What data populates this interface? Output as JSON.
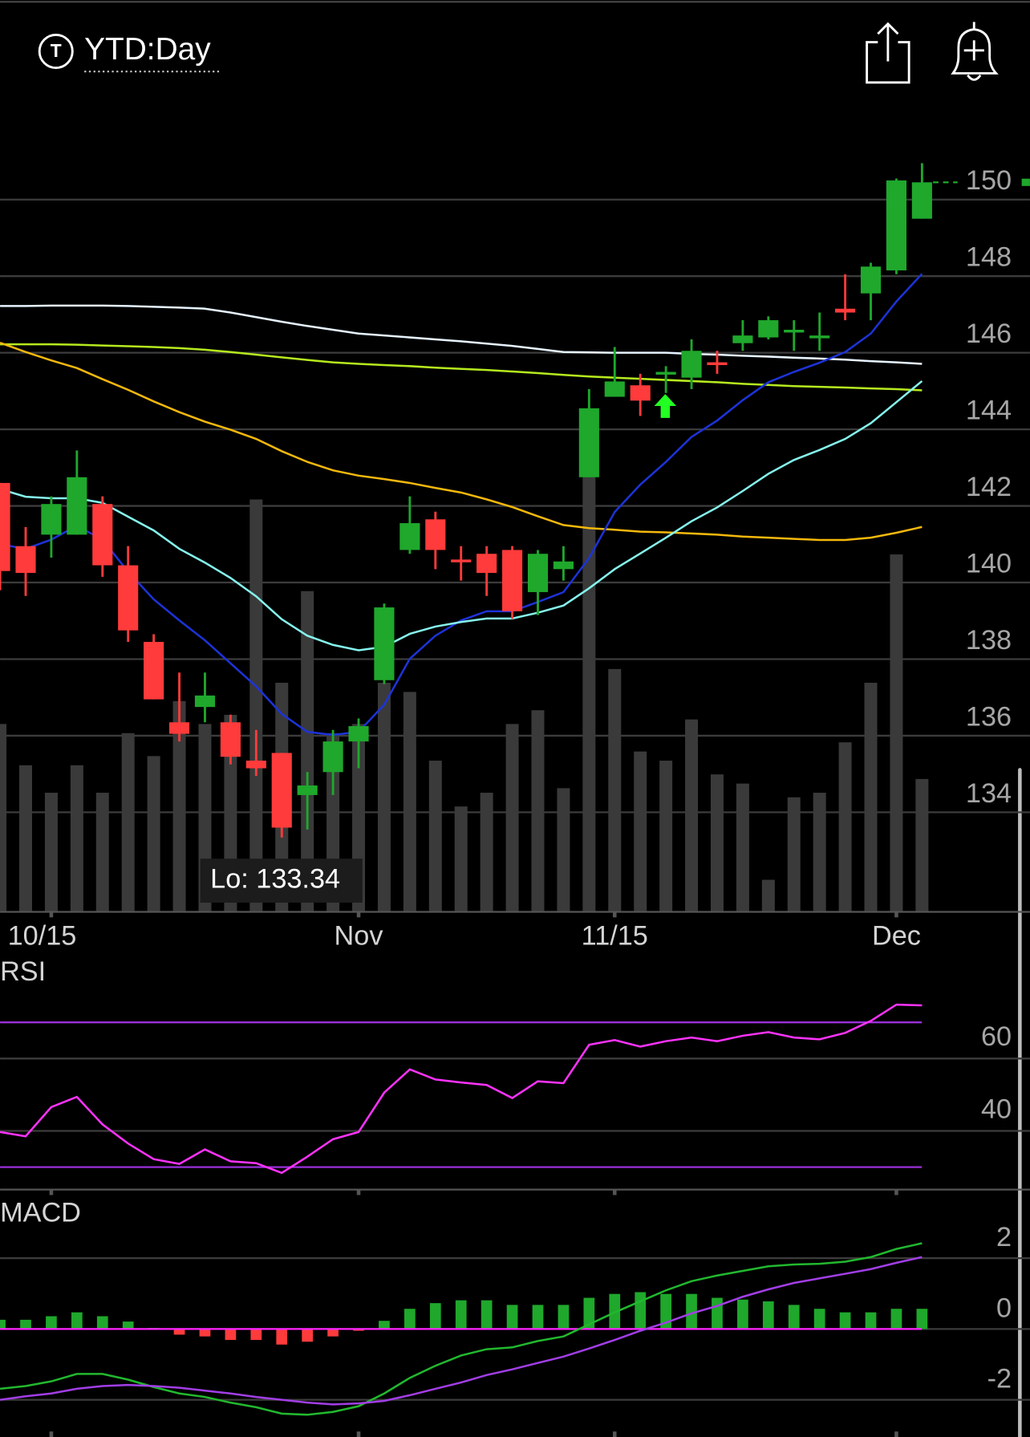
{
  "header": {
    "icon_letter": "T",
    "timeframe": "YTD:Day"
  },
  "chart_data": [
    {
      "type": "candlestick",
      "categories": [
        null,
        null,
        "10/15",
        null,
        null,
        null,
        null,
        null,
        null,
        null,
        null,
        null,
        null,
        null,
        "Nov",
        null,
        null,
        null,
        null,
        null,
        null,
        null,
        null,
        null,
        "11/15",
        null,
        null,
        null,
        null,
        null,
        null,
        null,
        null,
        null,
        null,
        "Dec",
        null
      ],
      "open": [
        142.6,
        140.95,
        141.25,
        141.25,
        142.05,
        140.45,
        138.45,
        136.35,
        136.75,
        136.35,
        135.35,
        135.55,
        134.45,
        135.05,
        135.85,
        137.45,
        140.85,
        141.65,
        140.6,
        140.75,
        140.85,
        139.75,
        140.35,
        142.75,
        144.85,
        145.15,
        145.45,
        145.35,
        145.75,
        146.25,
        146.4,
        146.55,
        146.4,
        147.15,
        147.55,
        148.15,
        149.5
      ],
      "high": [
        142.6,
        141.45,
        142.25,
        143.45,
        142.25,
        140.95,
        138.65,
        137.65,
        137.65,
        136.55,
        136.15,
        135.55,
        135.05,
        136.15,
        136.45,
        139.45,
        142.25,
        141.85,
        140.95,
        140.95,
        140.95,
        140.85,
        140.95,
        145.05,
        146.15,
        145.45,
        145.65,
        146.35,
        146.05,
        146.85,
        146.95,
        146.85,
        147.05,
        148.05,
        148.35,
        150.55,
        150.95
      ],
      "low": [
        139.8,
        139.65,
        140.65,
        141.25,
        140.15,
        138.45,
        136.95,
        135.85,
        136.35,
        135.25,
        134.95,
        133.34,
        133.55,
        134.45,
        135.15,
        137.35,
        140.75,
        140.35,
        140.05,
        139.65,
        139.05,
        139.15,
        140.05,
        142.75,
        144.85,
        144.35,
        144.95,
        145.05,
        145.45,
        146.05,
        146.35,
        146.05,
        146.05,
        146.85,
        146.85,
        148.05,
        149.5
      ],
      "close": [
        140.3,
        140.25,
        142.05,
        142.75,
        140.45,
        138.75,
        136.95,
        136.05,
        137.05,
        135.45,
        135.15,
        133.6,
        134.7,
        135.85,
        136.25,
        139.35,
        141.55,
        140.85,
        140.55,
        140.25,
        139.25,
        140.75,
        140.55,
        144.55,
        145.25,
        144.75,
        145.5,
        146.05,
        145.7,
        146.45,
        146.85,
        146.6,
        146.45,
        147.05,
        148.25,
        150.5,
        150.45
      ],
      "up_color": "#1fa82c",
      "down_color": "#ff3b3b",
      "ylim": [
        131.4,
        152.1
      ],
      "yticks": [
        134,
        136,
        138,
        140,
        142,
        144,
        146,
        148,
        150
      ],
      "grid": true,
      "annotation": "Lo: 133.34",
      "volume": {
        "color": "#3a3a3a",
        "ylim": [
          0,
          100
        ],
        "values": [
          41,
          32,
          26,
          32,
          26,
          39,
          34,
          46,
          41,
          43,
          90,
          50,
          70,
          39,
          41,
          50,
          48,
          33,
          23,
          26,
          41,
          44,
          27,
          95,
          53,
          35,
          33,
          42,
          30,
          28,
          7,
          25,
          26,
          37,
          50,
          78,
          29
        ]
      },
      "series": [
        {
          "color": "#e6f3ff",
          "values": [
            147.22,
            147.22,
            147.23,
            147.23,
            147.23,
            147.22,
            147.2,
            147.18,
            147.15,
            147.05,
            146.93,
            146.81,
            146.7,
            146.6,
            146.5,
            146.45,
            146.4,
            146.35,
            146.3,
            146.24,
            146.18,
            146.1,
            146.02,
            146.01,
            146.0,
            146.0,
            146.0,
            145.97,
            145.95,
            145.92,
            145.9,
            145.87,
            145.85,
            145.82,
            145.78,
            145.75,
            145.71
          ]
        },
        {
          "color": "#b6ea1e",
          "values": [
            146.22,
            146.22,
            146.22,
            146.21,
            146.19,
            146.17,
            146.15,
            146.12,
            146.08,
            146.02,
            145.95,
            145.88,
            145.81,
            145.75,
            145.71,
            145.68,
            145.65,
            145.61,
            145.58,
            145.55,
            145.51,
            145.47,
            145.42,
            145.38,
            145.35,
            145.32,
            145.29,
            145.26,
            145.23,
            145.19,
            145.16,
            145.13,
            145.11,
            145.09,
            145.07,
            145.05,
            145.02
          ]
        },
        {
          "color": "#f5b80c",
          "values": [
            146.26,
            146.02,
            145.8,
            145.6,
            145.31,
            145.03,
            144.73,
            144.45,
            144.2,
            143.99,
            143.75,
            143.43,
            143.15,
            142.93,
            142.79,
            142.7,
            142.6,
            142.47,
            142.35,
            142.17,
            141.97,
            141.73,
            141.5,
            141.42,
            141.38,
            141.33,
            141.31,
            141.28,
            141.25,
            141.2,
            141.17,
            141.14,
            141.11,
            141.11,
            141.17,
            141.3,
            141.45
          ]
        },
        {
          "color": "#1d33d8",
          "values": [
            141.0,
            140.88,
            141.12,
            141.48,
            141.12,
            140.28,
            139.56,
            139.01,
            138.49,
            137.89,
            137.29,
            136.57,
            136.1,
            136.02,
            136.1,
            136.81,
            138.01,
            138.61,
            139.01,
            139.25,
            139.25,
            139.49,
            139.75,
            140.64,
            141.84,
            142.56,
            143.15,
            143.8,
            144.23,
            144.76,
            145.23,
            145.5,
            145.74,
            146.02,
            146.5,
            147.34,
            148.06
          ]
        },
        {
          "color": "#86f5ee",
          "values": [
            142.44,
            142.24,
            142.2,
            142.2,
            142.08,
            141.72,
            141.36,
            140.88,
            140.52,
            140.12,
            139.64,
            139.04,
            138.61,
            138.37,
            138.23,
            138.32,
            138.66,
            138.85,
            138.97,
            139.06,
            139.06,
            139.21,
            139.4,
            139.85,
            140.35,
            140.76,
            141.17,
            141.6,
            141.96,
            142.39,
            142.84,
            143.2,
            143.46,
            143.75,
            144.16,
            144.71,
            145.26
          ]
        }
      ]
    },
    {
      "type": "rsi",
      "title": "RSI",
      "ylim": [
        23.8,
        79
      ],
      "yticks": [
        40,
        60
      ],
      "grid": true,
      "levels": [
        30,
        70
      ],
      "level_color": "#9b2fd8",
      "series": [
        {
          "color": "#ff33ff",
          "values": [
            39.7,
            38.5,
            46.6,
            49.4,
            41.8,
            36.5,
            32.2,
            30.9,
            34.9,
            31.6,
            31.1,
            28.4,
            32.9,
            37.7,
            39.7,
            50.6,
            57.0,
            54.2,
            53.4,
            52.7,
            49.1,
            53.7,
            53.2,
            63.8,
            65.1,
            63.3,
            64.8,
            65.8,
            64.8,
            66.3,
            67.3,
            65.8,
            65.3,
            67.1,
            70.4,
            74.9,
            74.7
          ]
        }
      ]
    },
    {
      "type": "macd",
      "title": "MACD",
      "ylim": [
        -3.05,
        2.85
      ],
      "yticks": [
        -2,
        0,
        2
      ],
      "grid": true,
      "zero_color": "#ff22ff",
      "histogram": {
        "up_color": "#1fa82c",
        "down_color": "#ff3b3b",
        "values": [
          0.26,
          0.26,
          0.36,
          0.47,
          0.36,
          0.21,
          0.03,
          -0.16,
          -0.21,
          -0.31,
          -0.31,
          -0.44,
          -0.36,
          -0.21,
          -0.05,
          0.23,
          0.57,
          0.73,
          0.81,
          0.81,
          0.68,
          0.68,
          0.68,
          0.88,
          0.99,
          1.04,
          0.99,
          0.99,
          0.88,
          0.83,
          0.78,
          0.68,
          0.57,
          0.47,
          0.47,
          0.57,
          0.57
        ]
      },
      "series": [
        {
          "color": "#22b82e",
          "values": [
            -1.69,
            -1.61,
            -1.48,
            -1.27,
            -1.27,
            -1.43,
            -1.64,
            -1.82,
            -1.92,
            -2.08,
            -2.21,
            -2.39,
            -2.42,
            -2.34,
            -2.18,
            -1.82,
            -1.38,
            -1.04,
            -0.75,
            -0.57,
            -0.52,
            -0.34,
            -0.21,
            0.13,
            0.47,
            0.78,
            1.09,
            1.35,
            1.51,
            1.64,
            1.77,
            1.82,
            1.84,
            1.9,
            2.03,
            2.26,
            2.42
          ]
        },
        {
          "color": "#a23ee6",
          "values": [
            -2.0,
            -1.9,
            -1.82,
            -1.69,
            -1.61,
            -1.58,
            -1.61,
            -1.66,
            -1.74,
            -1.82,
            -1.92,
            -2.0,
            -2.08,
            -2.13,
            -2.1,
            -2.03,
            -1.87,
            -1.69,
            -1.51,
            -1.3,
            -1.14,
            -0.96,
            -0.78,
            -0.55,
            -0.31,
            -0.05,
            0.18,
            0.44,
            0.65,
            0.91,
            1.12,
            1.3,
            1.43,
            1.56,
            1.69,
            1.87,
            2.03
          ]
        }
      ]
    }
  ]
}
